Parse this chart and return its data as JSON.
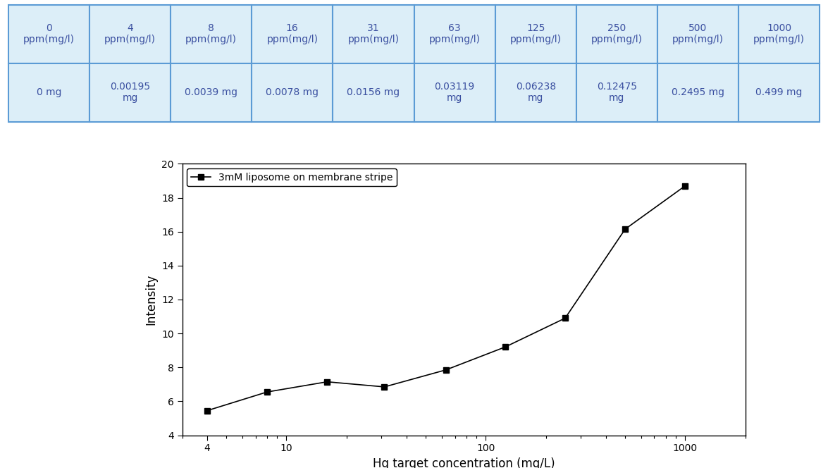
{
  "table_headers": [
    "0\nppm(mg/l)",
    "4\nppm(mg/l)",
    "8\nppm(mg/l)",
    "16\nppm(mg/l)",
    "31\nppm(mg/l)",
    "63\nppm(mg/l)",
    "125\nppm(mg/l)",
    "250\nppm(mg/l)",
    "500\nppm(mg/l)",
    "1000\nppm(mg/l)"
  ],
  "table_values": [
    "0 mg",
    "0.00195\nmg",
    "0.0039 mg",
    "0.0078 mg",
    "0.0156 mg",
    "0.03119\nmg",
    "0.06238\nmg",
    "0.12475\nmg",
    "0.2495 mg",
    "0.499 mg"
  ],
  "table_bg_color": "#dceef8",
  "table_border_color": "#5b9bd5",
  "table_text_color": "#3a4fa0",
  "x_data_full": [
    4,
    8,
    16,
    31,
    63,
    125,
    250,
    500,
    1000
  ],
  "y_data_full": [
    5.45,
    6.55,
    7.15,
    6.85,
    7.85,
    9.2,
    10.9,
    16.15,
    18.7
  ],
  "xlabel": "Hg target concentration (mg/L)",
  "ylabel": "Intensity",
  "legend_label": "3mM liposome on membrane stripe",
  "ylim": [
    4,
    20
  ],
  "yticks": [
    4,
    6,
    8,
    10,
    12,
    14,
    16,
    18,
    20
  ],
  "xtick_vals": [
    4,
    10,
    100,
    1000
  ],
  "xlim_left": 3,
  "xlim_right": 2000,
  "line_color": "#000000",
  "marker": "s",
  "marker_size": 6,
  "marker_color": "#000000",
  "axis_label_fontsize": 12,
  "legend_fontsize": 10,
  "tick_fontsize": 10,
  "table_fontsize": 10
}
